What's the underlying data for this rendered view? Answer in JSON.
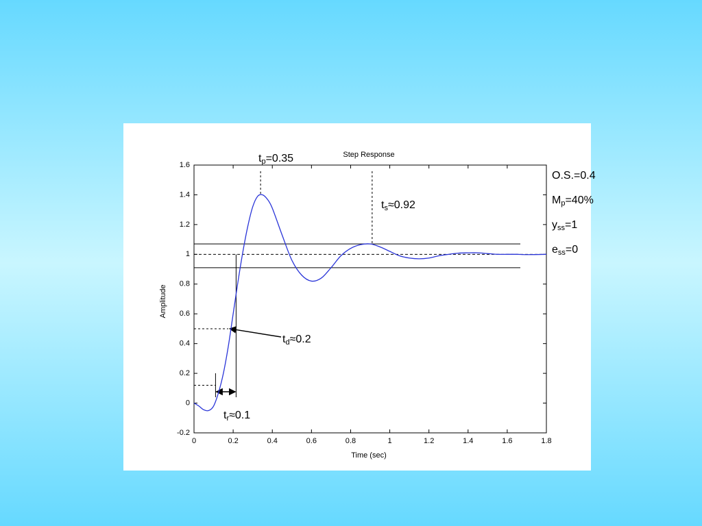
{
  "chart_data": {
    "type": "line",
    "title": "Step Response",
    "x_label": "Time (sec)",
    "y_label": "Amplitude",
    "x": [
      0,
      0.025,
      0.05,
      0.075,
      0.1,
      0.125,
      0.15,
      0.175,
      0.2,
      0.225,
      0.25,
      0.275,
      0.3,
      0.325,
      0.35,
      0.375,
      0.4,
      0.45,
      0.5,
      0.55,
      0.6,
      0.65,
      0.7,
      0.75,
      0.8,
      0.85,
      0.9,
      0.95,
      1.0,
      1.05,
      1.1,
      1.15,
      1.2,
      1.25,
      1.3,
      1.35,
      1.4,
      1.45,
      1.5,
      1.55,
      1.6,
      1.65,
      1.7,
      1.8
    ],
    "series": [
      {
        "color": "#2a35d8",
        "values": [
          0,
          -0.02,
          -0.045,
          -0.05,
          -0.02,
          0.07,
          0.2,
          0.38,
          0.6,
          0.82,
          1.02,
          1.19,
          1.32,
          1.39,
          1.4,
          1.37,
          1.31,
          1.13,
          0.96,
          0.86,
          0.82,
          0.84,
          0.91,
          0.99,
          1.04,
          1.065,
          1.07,
          1.05,
          1.02,
          0.99,
          0.975,
          0.97,
          0.975,
          0.99,
          1.0,
          1.008,
          1.01,
          1.01,
          1.005,
          1.0,
          1.0,
          1.0,
          0.998,
          1.0
        ]
      }
    ],
    "xlim": [
      0,
      1.8
    ],
    "xticks": [
      0,
      0.2,
      0.4,
      0.6,
      0.8,
      1,
      1.2,
      1.4,
      1.6,
      1.8
    ],
    "ylim": [
      -0.2,
      1.6
    ],
    "yticks": [
      -0.2,
      0,
      0.2,
      0.4,
      0.6,
      0.8,
      1,
      1.2,
      1.4,
      1.6
    ],
    "steady_state": 1,
    "settling_band": [
      0.91,
      1.07
    ],
    "markers": {
      "peak_x": 0.34,
      "settling_x": 0.91,
      "delay_x": 0.175,
      "delay_y": 0.5,
      "rise_x": [
        0.11,
        0.215
      ],
      "rise_y": 0.12
    },
    "annotations": [
      {
        "text": "t",
        "sub": "p",
        "tail": "=0.35"
      },
      {
        "text": "t",
        "sub": "s",
        "tail": "≈0.92"
      },
      {
        "text": "t",
        "sub": "d",
        "tail": "≈0.2"
      },
      {
        "text": "t",
        "sub": "r",
        "tail": "≈0.1"
      },
      {
        "text": "O.S.=0.4"
      },
      {
        "text": "M",
        "sub": "p",
        "tail": "=40%"
      },
      {
        "text": "y",
        "sub": "ss",
        "tail": "=1"
      },
      {
        "text": "e",
        "sub": "ss",
        "tail": "=0"
      }
    ]
  }
}
